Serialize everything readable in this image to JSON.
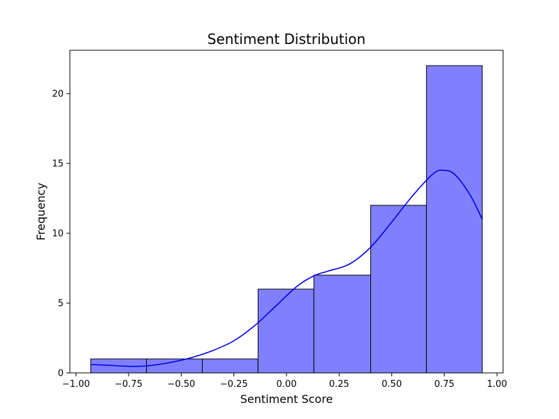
{
  "chart_data": {
    "type": "bar",
    "title": "Sentiment Distribution",
    "xlabel": "Sentiment Score",
    "ylabel": "Frequency",
    "xlim": [
      -1.0,
      1.0
    ],
    "ylim": [
      0,
      22
    ],
    "x_ticks": [
      {
        "value": -1.0,
        "label": "−1.00"
      },
      {
        "value": -0.75,
        "label": "−0.75"
      },
      {
        "value": -0.5,
        "label": "−0.50"
      },
      {
        "value": -0.25,
        "label": "−0.25"
      },
      {
        "value": 0.0,
        "label": "0.00"
      },
      {
        "value": 0.25,
        "label": "0.25"
      },
      {
        "value": 0.5,
        "label": "0.50"
      },
      {
        "value": 0.75,
        "label": "0.75"
      },
      {
        "value": 1.0,
        "label": "1.00"
      }
    ],
    "y_ticks": [
      {
        "value": 0,
        "label": "0"
      },
      {
        "value": 5,
        "label": "5"
      },
      {
        "value": 10,
        "label": "10"
      },
      {
        "value": 15,
        "label": "15"
      },
      {
        "value": 20,
        "label": "20"
      }
    ],
    "bins": [
      {
        "start": -0.93,
        "end": -0.665,
        "count": 1
      },
      {
        "start": -0.665,
        "end": -0.4,
        "count": 1
      },
      {
        "start": -0.4,
        "end": -0.135,
        "count": 1
      },
      {
        "start": -0.135,
        "end": 0.13,
        "count": 6
      },
      {
        "start": 0.13,
        "end": 0.4,
        "count": 7
      },
      {
        "start": 0.4,
        "end": 0.665,
        "count": 12
      },
      {
        "start": 0.665,
        "end": 0.93,
        "count": 22
      }
    ],
    "kde_curve": [
      {
        "x": -0.93,
        "y": 0.6
      },
      {
        "x": -0.85,
        "y": 0.55
      },
      {
        "x": -0.75,
        "y": 0.47
      },
      {
        "x": -0.665,
        "y": 0.5
      },
      {
        "x": -0.55,
        "y": 0.75
      },
      {
        "x": -0.45,
        "y": 1.1
      },
      {
        "x": -0.35,
        "y": 1.6
      },
      {
        "x": -0.25,
        "y": 2.3
      },
      {
        "x": -0.15,
        "y": 3.4
      },
      {
        "x": -0.05,
        "y": 4.8
      },
      {
        "x": 0.05,
        "y": 6.2
      },
      {
        "x": 0.13,
        "y": 6.95
      },
      {
        "x": 0.2,
        "y": 7.3
      },
      {
        "x": 0.3,
        "y": 7.8
      },
      {
        "x": 0.4,
        "y": 9.0
      },
      {
        "x": 0.5,
        "y": 10.8
      },
      {
        "x": 0.6,
        "y": 12.7
      },
      {
        "x": 0.7,
        "y": 14.3
      },
      {
        "x": 0.75,
        "y": 14.5
      },
      {
        "x": 0.8,
        "y": 14.2
      },
      {
        "x": 0.87,
        "y": 12.8
      },
      {
        "x": 0.93,
        "y": 11.0
      }
    ],
    "bar_color": "#8080ff",
    "bar_edge_color": "#000000",
    "kde_color": "#0000e6",
    "grid": false,
    "legend": false
  }
}
